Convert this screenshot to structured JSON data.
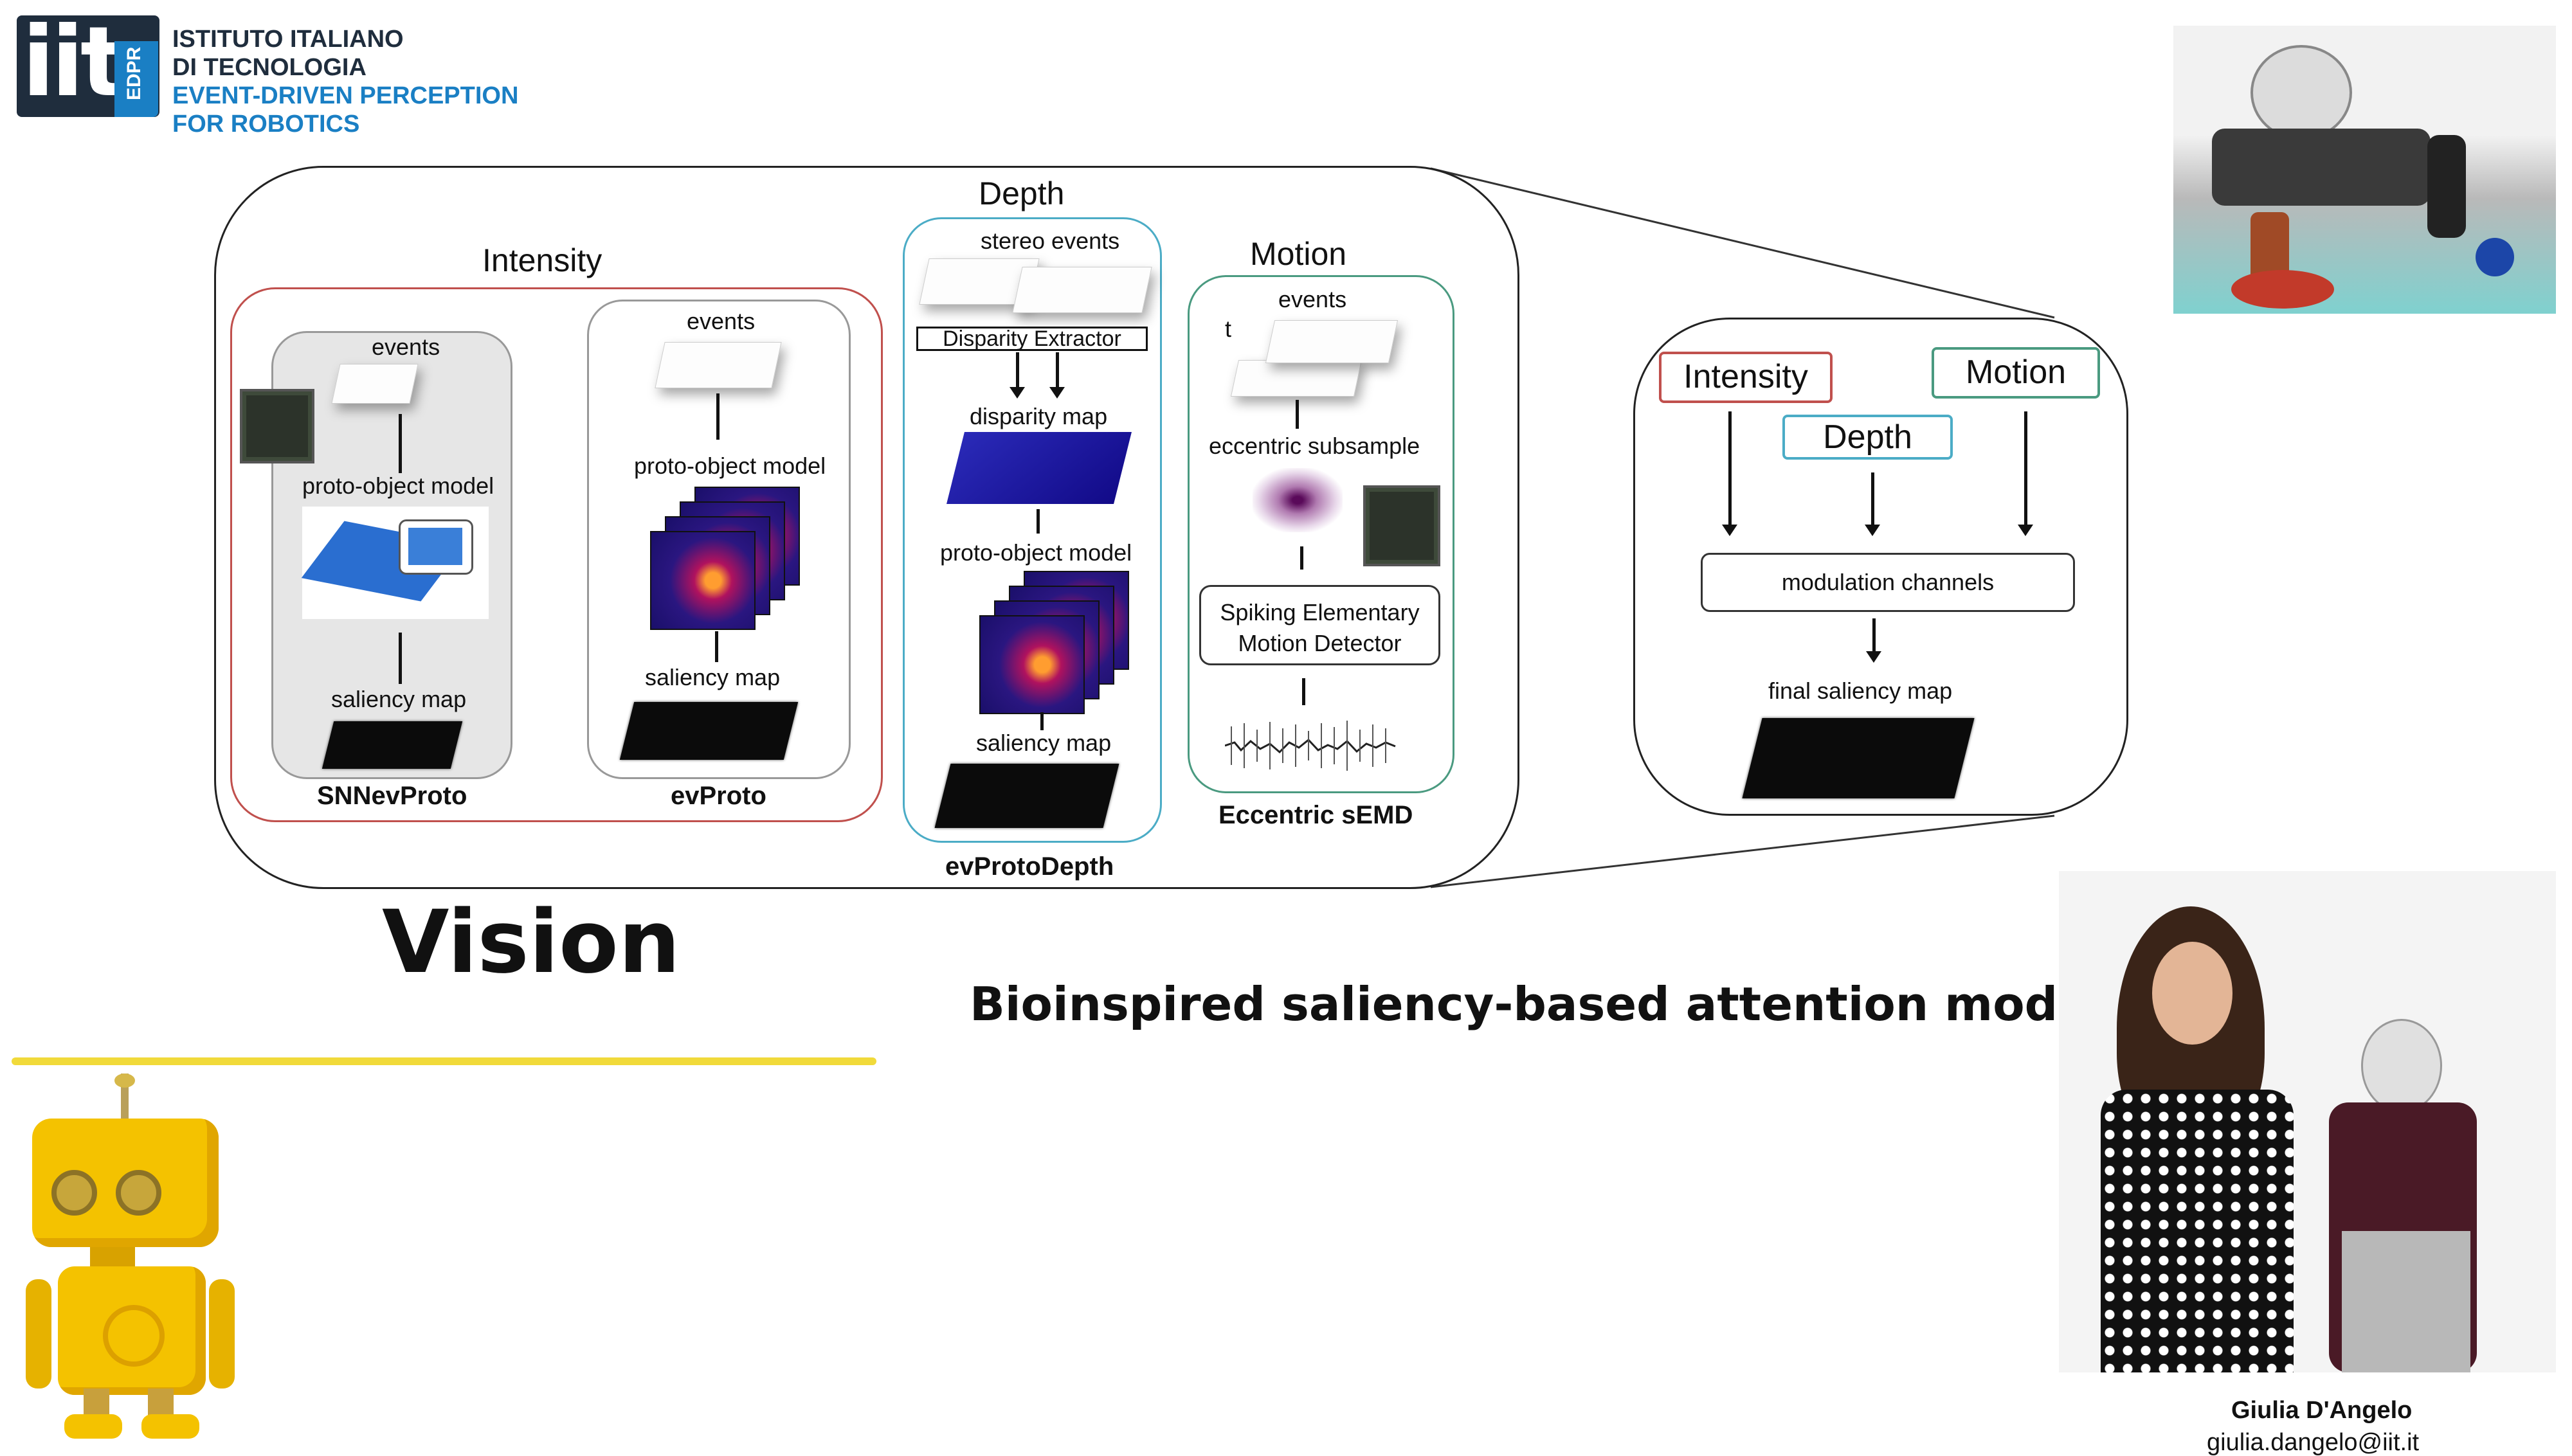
{
  "logo": {
    "mark": "iit",
    "badge": "EDPR",
    "lines": [
      "ISTITUTO ITALIANO",
      "DI TECNOLOGIA",
      "EVENT-DRIVEN PERCEPTION",
      "FOR ROBOTICS"
    ]
  },
  "title": "Vision",
  "subtitle": "Bioinspired saliency-based attention model",
  "diagram": {
    "intensity": {
      "label": "Intensity",
      "snn": {
        "events": "events",
        "model": "proto-object model",
        "saliency": "saliency map",
        "name": "SNNevProto"
      },
      "ev": {
        "events": "events",
        "model": "proto-object model",
        "saliency": "saliency map",
        "name": "evProto"
      }
    },
    "depth": {
      "label": "Depth",
      "stereo": "stereo events",
      "extractor": "Disparity Extractor",
      "disparity": "disparity map",
      "model": "proto-object model",
      "saliency": "saliency map",
      "name": "evProtoDepth"
    },
    "motion": {
      "label": "Motion",
      "events": "events",
      "t": "t",
      "subsample": "eccentric subsample",
      "detector_line1": "Spiking Elementary",
      "detector_line2": "Motion Detector",
      "name": "Eccentric sEMD"
    },
    "summary": {
      "intensity": "Intensity",
      "depth": "Depth",
      "motion": "Motion",
      "modulation": "modulation channels",
      "final": "final saliency map"
    }
  },
  "presenter": {
    "name": "Giulia D'Angelo",
    "email": "giulia.dangelo@iit.it"
  },
  "colors": {
    "red": "#c0504d",
    "teal": "#4bacc6",
    "green": "#4a9a80",
    "yellow": "#f1da3a",
    "brand_blue": "#1a7fc4"
  }
}
